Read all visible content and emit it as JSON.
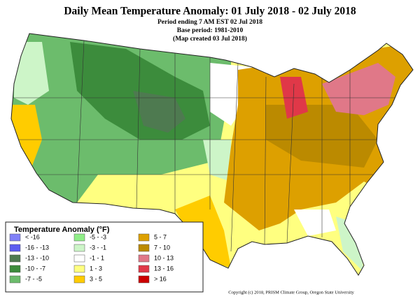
{
  "header": {
    "title": "Daily Mean Temperature Anomaly: 01 July 2018 - 02 July 2018",
    "lines": [
      "Period ending 7 AM EST 02 Jul 2018",
      "Base period: 1981-2010",
      "(Map created 03 Jul 2018)"
    ]
  },
  "legend": {
    "title": "Temperature Anomaly (°F)",
    "items": [
      {
        "label": "< -16",
        "color": "#8080f8"
      },
      {
        "label": "-16 - -13",
        "color": "#5c5cf0"
      },
      {
        "label": "-13 - -10",
        "color": "#4e7a50"
      },
      {
        "label": "-10 - -7",
        "color": "#3c8c3c"
      },
      {
        "label": "-7 - -5",
        "color": "#6cbc6c"
      },
      {
        "label": "-5 - -3",
        "color": "#90ee88"
      },
      {
        "label": "-3 - -1",
        "color": "#cdf5c8"
      },
      {
        "label": "-1 - 1",
        "color": "#ffffff"
      },
      {
        "label": "1 - 3",
        "color": "#ffff80"
      },
      {
        "label": "3 - 5",
        "color": "#ffcc00"
      },
      {
        "label": "5 - 7",
        "color": "#dda000"
      },
      {
        "label": "7 - 10",
        "color": "#bb8a00"
      },
      {
        "label": "10 - 13",
        "color": "#e07888"
      },
      {
        "label": "13 - 16",
        "color": "#e03848"
      },
      {
        "label": "> 16",
        "color": "#cc0000"
      }
    ]
  },
  "footer": {
    "copyright": "Copyright (c) 2018, PRISM Climate Group, Oregon State University"
  }
}
